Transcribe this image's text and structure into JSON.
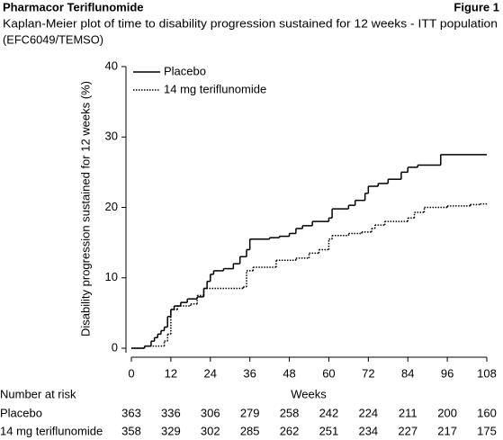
{
  "chart_data": {
    "type": "line",
    "step": true,
    "header_left": "Pharmacor Teriflunomide",
    "header_right": "Figure 1",
    "title": [
      "Kaplan-Meier plot of time to disability progression sustained for 12 weeks - ITT population",
      "(EFC6049/TEMSO)"
    ],
    "ylabel": "Disability progression sustained for 12 weeks (%)",
    "xlabel": "Weeks",
    "xlim": [
      0,
      108
    ],
    "xticks": [
      0,
      12,
      24,
      36,
      48,
      60,
      72,
      84,
      96,
      108
    ],
    "ylim": [
      0,
      40
    ],
    "yticks": [
      0,
      10,
      20,
      30,
      40
    ],
    "legend": "top-left",
    "series": [
      {
        "name": "Placebo",
        "color": "#000000",
        "linestyle": "solid",
        "x": [
          0,
          4,
          6,
          7,
          8,
          9,
          10,
          11,
          12,
          13,
          15,
          17,
          20,
          22,
          23,
          24,
          25,
          28,
          31,
          33,
          35,
          36,
          42,
          45,
          48,
          50,
          52,
          55,
          60,
          61,
          66,
          68,
          71,
          72,
          75,
          78,
          82,
          84,
          87,
          94,
          108
        ],
        "values": [
          0,
          0.3,
          1,
          1.5,
          2,
          2.5,
          3,
          4.5,
          5.5,
          6,
          6.5,
          7,
          7.3,
          8.5,
          9.5,
          10.5,
          11,
          11.3,
          12,
          13,
          14,
          15.5,
          15.7,
          15.9,
          16.3,
          17,
          17.4,
          18,
          18.5,
          19.8,
          20.3,
          21,
          22,
          23,
          23.4,
          24,
          25,
          25.7,
          26,
          27.5,
          27.5
        ]
      },
      {
        "name": "14 mg teriflunomide",
        "color": "#000000",
        "linestyle": "dotted",
        "x": [
          0,
          4,
          10,
          11,
          12,
          14,
          18,
          20,
          22,
          34,
          35,
          37,
          44,
          50,
          54,
          57,
          60,
          61,
          66,
          70,
          73,
          74,
          77,
          84,
          86,
          89,
          96,
          103,
          106,
          108
        ],
        "values": [
          0,
          0.3,
          1,
          2,
          5.5,
          6,
          6.3,
          7.5,
          8.5,
          8.7,
          11,
          11.5,
          12.5,
          12.8,
          13.5,
          14,
          15.5,
          16,
          16.3,
          16.5,
          17,
          17.5,
          18,
          18.5,
          19.3,
          20,
          20.2,
          20.4,
          20.5,
          20.5
        ]
      }
    ],
    "risk_table": {
      "title": "Number at risk",
      "rows": [
        [
          363,
          336,
          306,
          279,
          258,
          242,
          224,
          211,
          200,
          160
        ],
        [
          358,
          329,
          302,
          285,
          262,
          251,
          234,
          227,
          217,
          175
        ]
      ]
    }
  }
}
